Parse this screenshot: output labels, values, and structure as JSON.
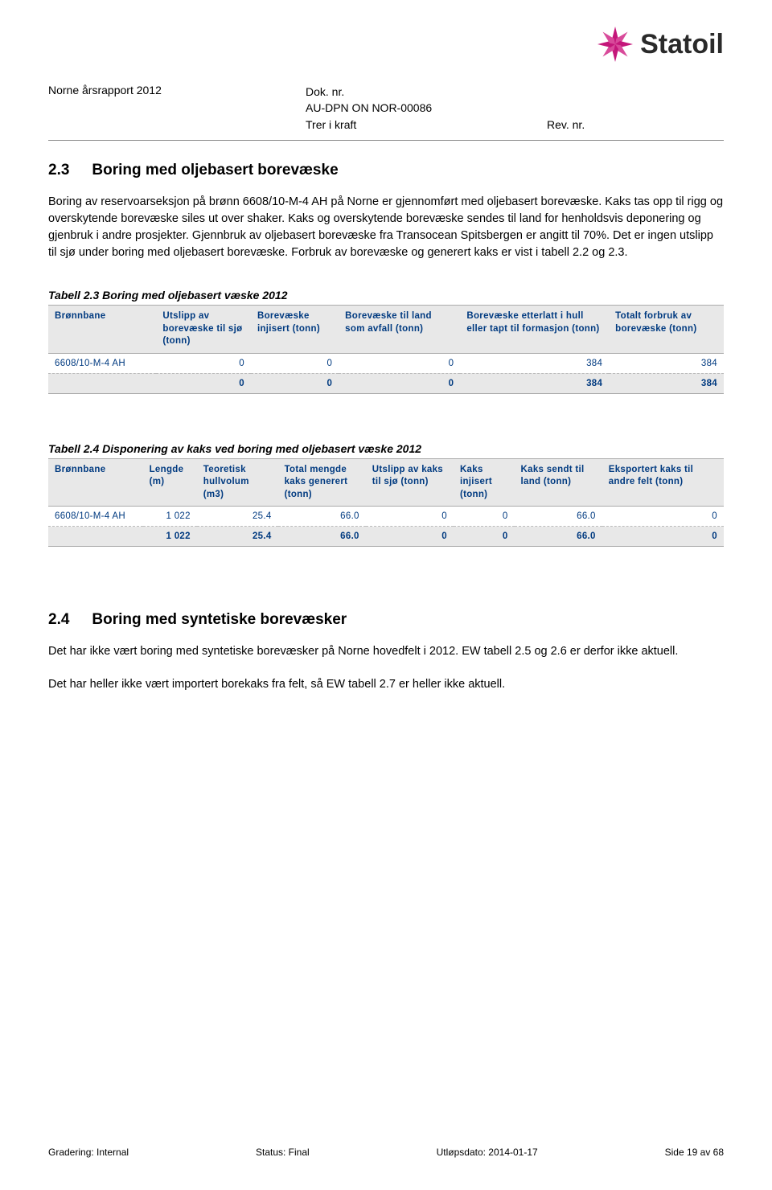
{
  "header": {
    "left": "Norne årsrapport 2012",
    "mid_line1": "Dok. nr.",
    "mid_line2": "AU-DPN ON NOR-00086",
    "mid_line3": "Trer i kraft",
    "right_line1": "",
    "right_line3": "Rev. nr.",
    "logo_text": "Statoil",
    "logo_color": "#c4167a"
  },
  "section23": {
    "num": "2.3",
    "title": "Boring med oljebasert borevæske",
    "para": "Boring av reservoarseksjon på brønn 6608/10-M-4 AH på Norne er gjennomført med oljebasert borevæske. Kaks tas opp til rigg og overskytende borevæske siles ut over shaker. Kaks og overskytende borevæske sendes til land for henholdsvis deponering og gjenbruk i andre prosjekter. Gjennbruk av oljebasert borevæske fra Transocean Spitsbergen er angitt til 70%. Det er ingen utslipp til sjø under boring med oljebasert borevæske. Forbruk av borevæske og generert kaks er vist i tabell 2.2 og 2.3."
  },
  "table23": {
    "caption": "Tabell 2.3 Boring med oljebasert væske 2012",
    "columns": [
      "Brønnbane",
      "Utslipp av borevæske til sjø (tonn)",
      "Borevæske injisert (tonn)",
      "Borevæske til land som avfall (tonn)",
      "Borevæske etterlatt i hull eller tapt til formasjon (tonn)",
      "Totalt forbruk av borevæske (tonn)"
    ],
    "row": [
      "6608/10-M-4 AH",
      "0",
      "0",
      "0",
      "384",
      "384"
    ],
    "total": [
      "",
      "0",
      "0",
      "0",
      "384",
      "384"
    ],
    "col_widths": [
      "16%",
      "14%",
      "13%",
      "18%",
      "22%",
      "17%"
    ]
  },
  "table24": {
    "caption": "Tabell 2.4 Disponering av kaks ved boring med oljebasert væske 2012",
    "columns": [
      "Brønnbane",
      "Lengde (m)",
      "Teoretisk hullvolum (m3)",
      "Total mengde kaks generert (tonn)",
      "Utslipp av kaks til sjø (tonn)",
      "Kaks injisert (tonn)",
      "Kaks sendt til land (tonn)",
      "Eksportert kaks til andre felt (tonn)"
    ],
    "row": [
      "6608/10-M-4 AH",
      "1 022",
      "25.4",
      "66.0",
      "0",
      "0",
      "66.0",
      "0"
    ],
    "total": [
      "",
      "1 022",
      "25.4",
      "66.0",
      "0",
      "0",
      "66.0",
      "0"
    ],
    "col_widths": [
      "14%",
      "8%",
      "12%",
      "13%",
      "13%",
      "9%",
      "13%",
      "18%"
    ]
  },
  "section24": {
    "num": "2.4",
    "title": "Boring med syntetiske borevæsker",
    "para1": "Det har ikke vært boring med syntetiske borevæsker på Norne hovedfelt i 2012. EW tabell 2.5 og 2.6 er derfor ikke aktuell.",
    "para2": "Det har heller ikke vært importert borekaks fra felt, så EW tabell 2.7 er heller ikke aktuell."
  },
  "footer": {
    "left": "Gradering: Internal",
    "mid": "Status: Final",
    "right1": "Utløpsdato: 2014-01-17",
    "right2": "Side 19 av 68"
  }
}
